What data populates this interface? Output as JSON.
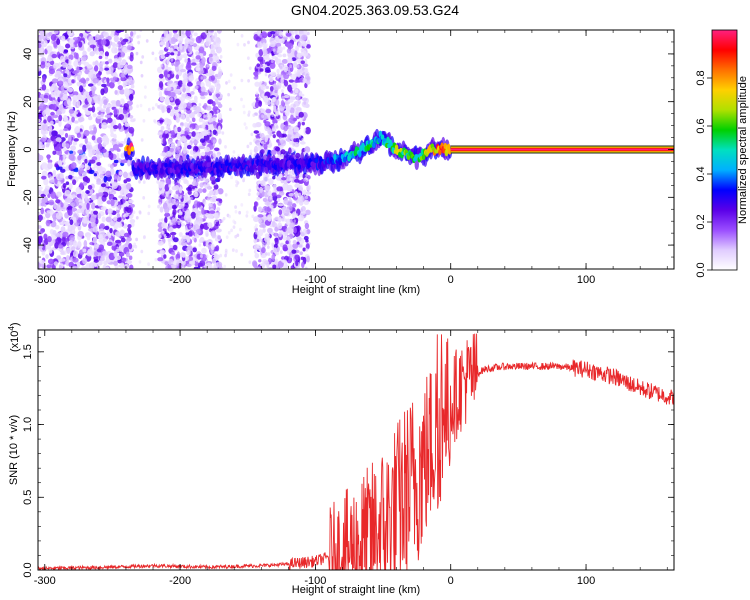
{
  "title": "GN04.2025.363.09.53.G24",
  "chart_data": [
    {
      "type": "heatmap",
      "name": "spectrogram",
      "xlabel": "Height of straight line (km)",
      "ylabel": "Frequency (Hz)",
      "xlim": [
        -305,
        165
      ],
      "ylim": [
        -50,
        50
      ],
      "xticks": [
        -300,
        -200,
        -100,
        0,
        100
      ],
      "yticks": [
        -40,
        -20,
        0,
        20,
        40
      ],
      "colorbar": {
        "label": "Normalized spectral amplitude",
        "range": [
          0,
          1
        ],
        "ticks": [
          0.0,
          0.2,
          0.4,
          0.6,
          0.8
        ],
        "tick_labels": [
          "0.0",
          "0.2",
          "0.4",
          "0.6",
          "0.8"
        ],
        "colors": [
          "#ffffff",
          "#e0ccff",
          "#9a4dff",
          "#5a00e8",
          "#0000ff",
          "#00b0ff",
          "#00e0c0",
          "#00d000",
          "#b0e000",
          "#ffd000",
          "#ff7000",
          "#ff0000",
          "#ff2080"
        ]
      },
      "noise_band_km": [
        [
          -305,
          -235
        ],
        [
          -215,
          -170
        ],
        [
          -145,
          -105
        ]
      ],
      "signal_track": [
        {
          "x": -235,
          "y": -8,
          "amp": 0.3
        },
        {
          "x": -200,
          "y": -8,
          "amp": 0.3
        },
        {
          "x": -160,
          "y": -7,
          "amp": 0.32
        },
        {
          "x": -120,
          "y": -6,
          "amp": 0.3
        },
        {
          "x": -100,
          "y": -6,
          "amp": 0.32
        },
        {
          "x": -80,
          "y": -4,
          "amp": 0.45
        },
        {
          "x": -65,
          "y": 0,
          "amp": 0.55
        },
        {
          "x": -52,
          "y": 5,
          "amp": 0.5
        },
        {
          "x": -40,
          "y": 0,
          "amp": 0.7
        },
        {
          "x": -25,
          "y": -4,
          "amp": 0.55
        },
        {
          "x": -15,
          "y": 0,
          "amp": 0.8
        },
        {
          "x": 0,
          "y": 0,
          "amp": 1.0
        },
        {
          "x": 165,
          "y": 0,
          "amp": 1.0
        }
      ]
    },
    {
      "type": "line",
      "name": "snr",
      "xlabel": "Height of straight line (km)",
      "ylabel": "SNR (10 * v/v)",
      "yscale_label": "(x10",
      "yscale_exponent": "4",
      "xlim": [
        -305,
        165
      ],
      "ylim": [
        0,
        1.65
      ],
      "xticks": [
        -300,
        -200,
        -100,
        0,
        100
      ],
      "yticks": [
        0.0,
        0.5,
        1.0,
        1.5
      ],
      "ytick_labels": [
        "0.0",
        "0.5",
        "1.0",
        "1.5"
      ],
      "color": "#e8282a",
      "x": [
        -305,
        -250,
        -220,
        -180,
        -140,
        -120,
        -100,
        -80,
        -60,
        -45,
        -30,
        -20,
        -10,
        0,
        10,
        25,
        40,
        60,
        80,
        100,
        120,
        140,
        165
      ],
      "y": [
        0.01,
        0.02,
        0.03,
        0.02,
        0.03,
        0.04,
        0.06,
        0.12,
        0.22,
        0.35,
        0.55,
        0.75,
        0.95,
        1.15,
        1.3,
        1.38,
        1.4,
        1.4,
        1.4,
        1.38,
        1.33,
        1.25,
        1.18
      ]
    }
  ]
}
